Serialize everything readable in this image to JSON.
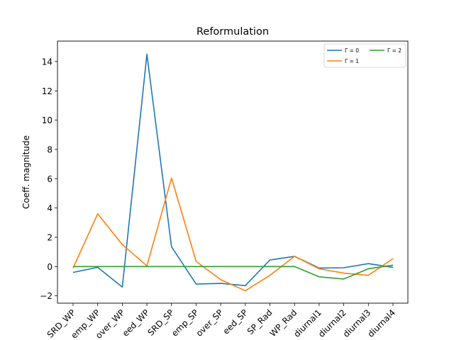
{
  "chart_data": {
    "type": "line",
    "title": "Reformulation",
    "xlabel": "",
    "ylabel": "Coeff. magnitude",
    "ylim": [
      -2.5,
      15.4
    ],
    "yticks": [
      -2,
      0,
      2,
      4,
      6,
      8,
      10,
      12,
      14
    ],
    "categories": [
      "SRD_WP",
      "Temp_WP",
      "Cover_WP",
      "Speed_WP",
      "SRD_SP",
      "Temp_SP",
      "Cover_SP",
      "Speed_SP",
      "SP_Rad",
      "WP_Rad",
      "diurnal1",
      "diurnal2",
      "diurnal3",
      "diurnal4"
    ],
    "tick_labels_visible": [
      "SRD_WP",
      "emp_WP",
      "over_WP",
      "eed_WP",
      "SRD_SP",
      "emp_SP",
      "over_SP",
      "eed_SP",
      "SP_Rad",
      "WP_Rad",
      "diurnal1",
      "diurnal2",
      "diurnal3",
      "diurnal4"
    ],
    "grid": false,
    "legend_position": "upper-right",
    "legend_columns": 2,
    "series": [
      {
        "name": "Γ = 0",
        "color": "#1f77b4",
        "values": [
          -0.4,
          -0.05,
          -1.4,
          14.5,
          1.35,
          -1.2,
          -1.15,
          -1.3,
          0.45,
          0.7,
          -0.1,
          -0.08,
          0.2,
          -0.05
        ]
      },
      {
        "name": "Γ = 1",
        "color": "#ff7f0e",
        "values": [
          -0.1,
          3.6,
          1.5,
          0.05,
          6.05,
          0.35,
          -0.9,
          -1.65,
          -0.6,
          0.7,
          -0.15,
          -0.45,
          -0.6,
          0.55
        ]
      },
      {
        "name": "Γ = 2",
        "color": "#2ca02c",
        "values": [
          0.0,
          0.0,
          0.0,
          0.0,
          0.0,
          0.0,
          0.0,
          0.0,
          0.0,
          0.0,
          -0.7,
          -0.85,
          -0.15,
          0.1
        ]
      }
    ]
  }
}
